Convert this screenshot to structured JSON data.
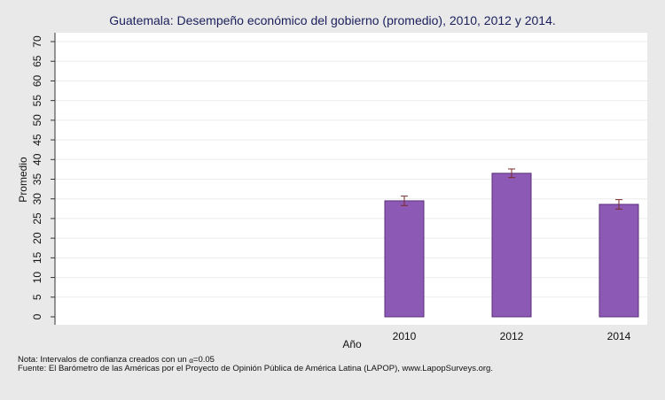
{
  "chart_data": {
    "type": "bar",
    "title": "Guatemala: Desempeño económico del gobierno (promedio), 2010, 2012 y 2014.",
    "xlabel": "Año",
    "ylabel": "Promedio",
    "categories": [
      "2010",
      "2012",
      "2014"
    ],
    "values": [
      29.5,
      36.5,
      28.6
    ],
    "ci_low": [
      28.3,
      35.4,
      27.4
    ],
    "ci_high": [
      30.7,
      37.6,
      29.8
    ],
    "ylim": [
      0,
      70
    ],
    "yticks": [
      0,
      5,
      10,
      15,
      20,
      25,
      30,
      35,
      40,
      45,
      50,
      55,
      60,
      65,
      70
    ],
    "grid": true,
    "bar_color": "#8c5ab5",
    "errorbar_color": "#7a2b2b"
  },
  "notes": {
    "ci_prefix": "Nota: Intervalos de confianza creados con un ",
    "ci_symbol": "α",
    "ci_value": "=0.05",
    "source": "Fuente: El Barómetro de las Américas por el Proyecto de Opinión Pública de América Latina (LAPOP), www.LapopSurveys.org."
  }
}
